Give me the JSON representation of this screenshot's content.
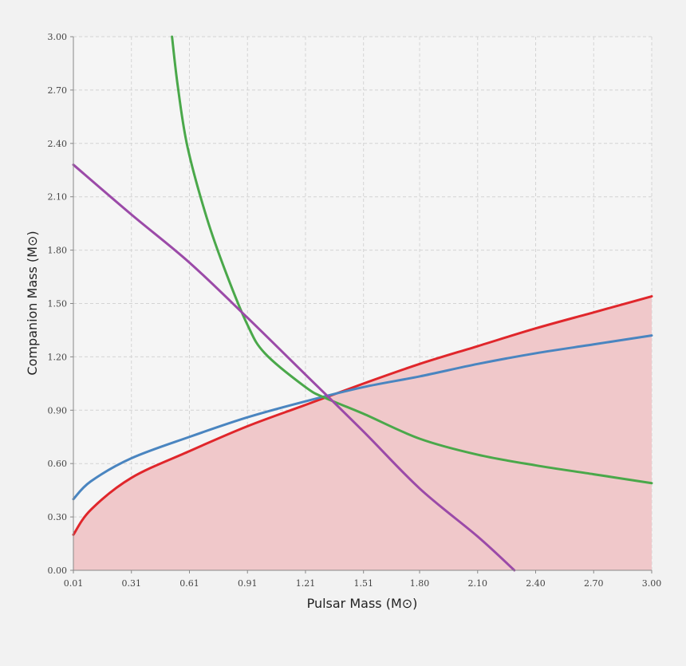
{
  "chart_data": {
    "type": "line",
    "title": "",
    "xlabel": "Pulsar Mass (M⊙)",
    "ylabel": "Companion Mass (M⊙)",
    "xlim": [
      0.01,
      3.0
    ],
    "ylim": [
      0.0,
      3.0
    ],
    "x_ticks": [
      "0.01",
      "0.31",
      "0.61",
      "0.91",
      "1.21",
      "1.51",
      "1.80",
      "2.10",
      "2.40",
      "2.70",
      "3.00"
    ],
    "y_ticks": [
      "0.00",
      "0.30",
      "0.60",
      "0.90",
      "1.20",
      "1.50",
      "1.80",
      "2.10",
      "2.40",
      "2.70",
      "3.00"
    ],
    "grid": true,
    "legend": "none",
    "colors": {
      "background": "#f2f2f2",
      "plot_background": "#f5f5f5",
      "excluded_region": "#f0c8ca"
    },
    "shaded_region": {
      "description_color": "#f0c8ca",
      "x": [
        0.01,
        0.1,
        0.31,
        0.61,
        0.91,
        1.21,
        1.51,
        1.8,
        2.1,
        2.4,
        2.7,
        3.0
      ],
      "y": [
        0.2,
        0.34,
        0.52,
        0.67,
        0.81,
        0.93,
        1.05,
        1.16,
        1.26,
        1.36,
        1.45,
        1.54
      ]
    },
    "series": [
      {
        "color": "#e0262b",
        "x": [
          0.01,
          0.1,
          0.31,
          0.61,
          0.91,
          1.21,
          1.51,
          1.8,
          2.1,
          2.4,
          2.7,
          3.0
        ],
        "y": [
          0.2,
          0.34,
          0.52,
          0.67,
          0.81,
          0.93,
          1.05,
          1.16,
          1.26,
          1.36,
          1.45,
          1.54
        ]
      },
      {
        "color": "#4a85c0",
        "x": [
          0.01,
          0.1,
          0.31,
          0.61,
          0.91,
          1.21,
          1.51,
          1.8,
          2.1,
          2.4,
          2.7,
          3.0
        ],
        "y": [
          0.4,
          0.5,
          0.63,
          0.75,
          0.86,
          0.95,
          1.03,
          1.09,
          1.16,
          1.22,
          1.27,
          1.32
        ]
      },
      {
        "color": "#4aa84a",
        "x": [
          0.52,
          0.55,
          0.6,
          0.7,
          0.8,
          0.91,
          1.0,
          1.21,
          1.31,
          1.51,
          1.8,
          2.1,
          2.4,
          2.7,
          3.0
        ],
        "y": [
          3.0,
          2.72,
          2.38,
          1.98,
          1.67,
          1.38,
          1.22,
          1.03,
          0.97,
          0.88,
          0.74,
          0.65,
          0.59,
          0.54,
          0.49
        ]
      },
      {
        "color": "#9b4aa8",
        "x": [
          0.01,
          0.31,
          0.61,
          0.91,
          1.21,
          1.51,
          1.8,
          2.1,
          2.29
        ],
        "y": [
          2.28,
          2.0,
          1.73,
          1.42,
          1.1,
          0.78,
          0.46,
          0.19,
          0.0
        ]
      }
    ]
  }
}
